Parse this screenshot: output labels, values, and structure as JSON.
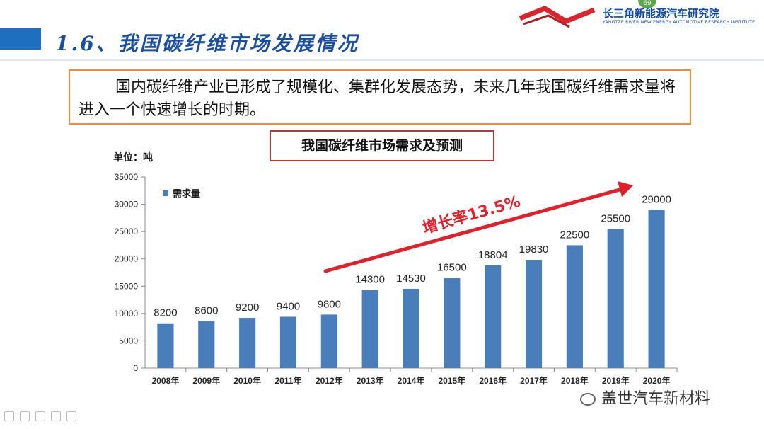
{
  "header": {
    "title": "1.6、我国碳纤维市场发展情况",
    "logo_name": "长三角新能源汽车研究院",
    "logo_sub": "YANGTZE RIVER NEW ENERGY AUTOMOTIVE RESEARCH INSTITUTE",
    "page_badge": "69"
  },
  "intro_text": "国内碳纤维产业已形成了规模化、集群化发展态势，未来几年我国碳纤维需求量将进入一个快速增长的时期。",
  "chart_box_title": "我国碳纤维市场需求及预测",
  "chart_data": {
    "type": "bar",
    "title": "我国碳纤维市场需求及预测",
    "unit_label": "单位：吨",
    "categories": [
      "2008年",
      "2009年",
      "2010年",
      "2011年",
      "2012年",
      "2013年",
      "2014年",
      "2015年",
      "2016年",
      "2017年",
      "2018年",
      "2019年",
      "2020年"
    ],
    "series": [
      {
        "name": "需求量",
        "values": [
          8200,
          8600,
          9200,
          9400,
          9800,
          14300,
          14530,
          16500,
          18804,
          19830,
          22500,
          25500,
          29000
        ]
      }
    ],
    "ylim": [
      0,
      35000
    ],
    "yticks": [
      0,
      5000,
      10000,
      15000,
      20000,
      25000,
      30000,
      35000
    ],
    "legend_position": "top-left",
    "grid": false,
    "annotation": "增长率13.5%",
    "colors": {
      "bar": "#4a7ebb",
      "arrow": "#e0202a",
      "annotation": "#e0202a"
    }
  },
  "watermark": "盖世汽车新材料"
}
